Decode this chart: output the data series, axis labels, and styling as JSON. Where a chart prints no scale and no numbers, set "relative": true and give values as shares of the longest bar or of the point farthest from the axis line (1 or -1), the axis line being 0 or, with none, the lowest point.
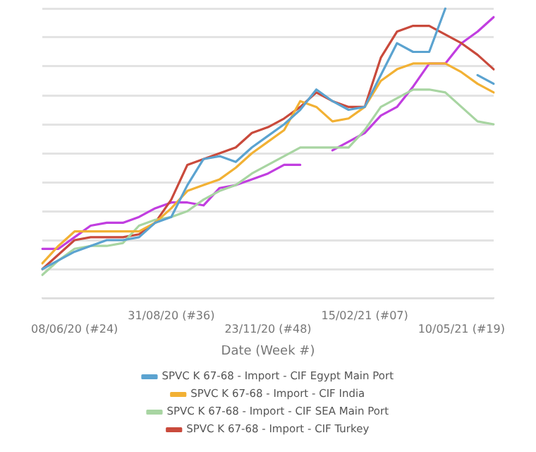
{
  "chart_data": {
    "type": "line",
    "relative": true,
    "xlabel": "Date (Week #)",
    "grid": "y",
    "legend": "bottom",
    "marker": "none",
    "line_style": "solid",
    "categories": [
      null,
      null,
      "08/06/20 (#24)",
      null,
      null,
      null,
      null,
      null,
      "31/08/20 (#36)",
      null,
      null,
      null,
      null,
      null,
      "23/11/20 (#48)",
      null,
      null,
      null,
      null,
      null,
      "15/02/21 (#07)",
      null,
      null,
      null,
      null,
      null,
      "10/05/21 (#19)",
      null,
      null
    ],
    "series": [
      {
        "name": "SPVC K 67-68 - Import - CIF Egypt Main Port",
        "color": "#5ba3d0",
        "values": [
          0.1,
          0.13,
          0.16,
          0.18,
          0.2,
          0.2,
          0.21,
          0.26,
          0.28,
          0.39,
          0.48,
          0.49,
          0.47,
          0.52,
          0.56,
          0.6,
          0.65,
          0.72,
          0.68,
          0.65,
          0.66,
          0.77,
          0.88,
          0.85,
          0.85,
          1.0,
          null,
          0.77,
          0.74
        ]
      },
      {
        "name": "SPVC K 67-68 - Import - CIF India",
        "color": "#f2b134",
        "values": [
          0.12,
          0.18,
          0.23,
          0.23,
          0.23,
          0.23,
          0.23,
          0.26,
          0.31,
          0.37,
          0.39,
          0.41,
          0.45,
          0.5,
          0.54,
          0.58,
          0.68,
          0.66,
          0.61,
          0.62,
          0.66,
          0.75,
          0.79,
          0.81,
          0.81,
          0.81,
          0.78,
          0.74,
          0.71
        ]
      },
      {
        "name": "SPVC K 67-68 - Import - CIF SEA Main Port",
        "color": "#a8d5a2",
        "values": [
          0.08,
          0.13,
          0.17,
          0.18,
          0.18,
          0.19,
          0.25,
          0.27,
          0.28,
          0.3,
          0.34,
          0.37,
          0.39,
          0.43,
          0.46,
          0.49,
          0.52,
          0.52,
          0.52,
          0.52,
          0.58,
          0.66,
          0.69,
          0.72,
          0.72,
          0.71,
          0.66,
          0.61,
          0.6
        ]
      },
      {
        "name": "SPVC K 67-68 - Import - CIF Turkey",
        "color": "#c94a3c",
        "values": [
          0.1,
          0.15,
          0.2,
          0.21,
          0.21,
          0.21,
          0.22,
          0.26,
          0.34,
          0.46,
          0.48,
          0.5,
          0.52,
          0.57,
          0.59,
          0.62,
          0.66,
          0.71,
          0.68,
          0.66,
          0.66,
          0.83,
          0.92,
          0.94,
          0.94,
          0.91,
          0.88,
          0.84,
          0.79
        ]
      },
      {
        "color": "#c13ee0",
        "values": [
          0.17,
          0.17,
          0.21,
          0.25,
          0.26,
          0.26,
          0.28,
          0.31,
          0.33,
          0.33,
          0.32,
          0.38,
          0.39,
          0.41,
          0.43,
          0.46,
          0.46,
          null,
          0.51,
          0.54,
          0.57,
          0.63,
          0.66,
          0.73,
          0.81,
          0.81,
          0.88,
          0.92,
          0.97
        ]
      }
    ]
  }
}
